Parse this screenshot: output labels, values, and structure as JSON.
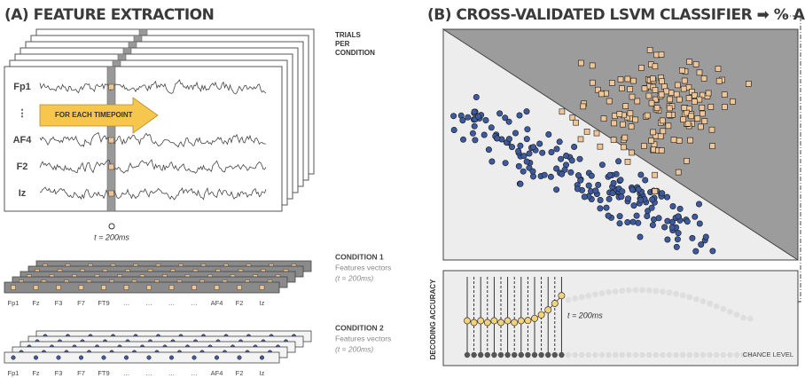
{
  "panel_a": {
    "title": "(A) FEATURE EXTRACTION",
    "trials_label": [
      "TRIALS",
      "PER",
      "CONDITION"
    ],
    "channels": [
      "Fp1",
      "⋮",
      "AF4",
      "F2",
      "Iz"
    ],
    "arrow_label": "FOR EACH TIMEPOINT",
    "timepoint": "t = 200ms",
    "conditions": [
      {
        "title": "CONDITION 1",
        "subtitle": "Features vectors",
        "timepoint": "(t = 200ms)"
      },
      {
        "title": "CONDITION 2",
        "subtitle": "Features vectors",
        "timepoint": "(t = 200ms)"
      }
    ],
    "electrodes": [
      "Fp1",
      "Fz",
      "F3",
      "F7",
      "FT9",
      "…",
      "…",
      "…",
      "…",
      "AF4",
      "F2",
      "Iz"
    ]
  },
  "panel_b": {
    "title": "(B) CROSS-VALIDATED LSVM CLASSIFIER ➡ % ACC",
    "y_label": "DECODING ACCURACY",
    "timepoint": "t = 200ms",
    "chance_label": "CHANCE LEVEL"
  }
}
